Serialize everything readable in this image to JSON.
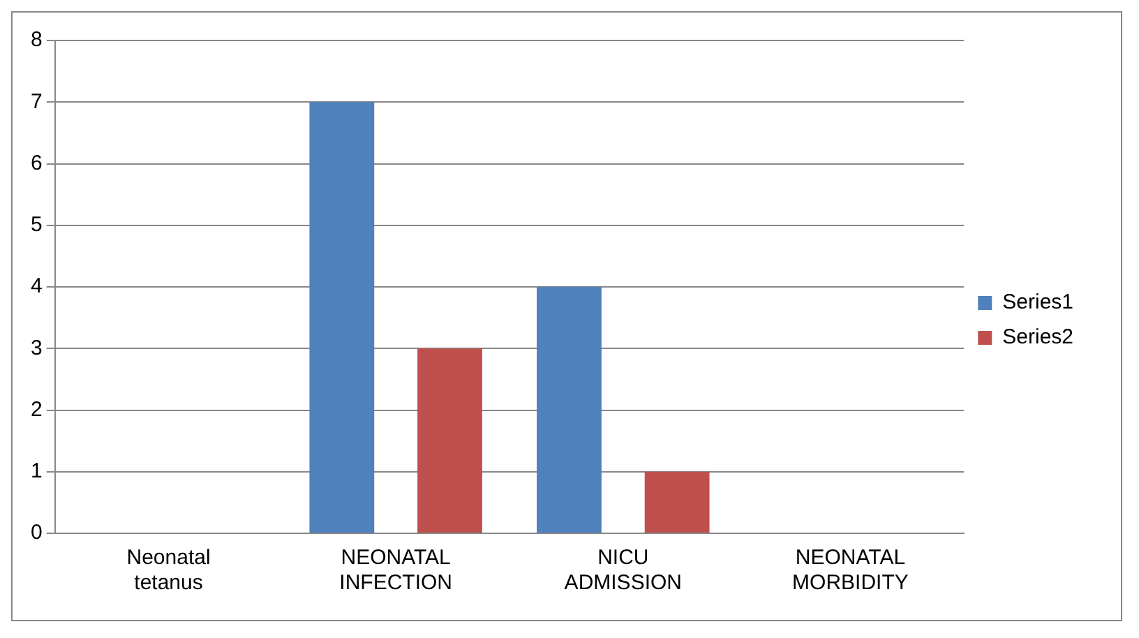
{
  "chart_data": {
    "type": "bar",
    "categories": [
      "Neonatal tetanus",
      "NEONATAL INFECTION",
      "NICU ADMISSION",
      "NEONATAL MORBIDITY"
    ],
    "series": [
      {
        "name": "Series1",
        "color": "#4f81bd",
        "values": [
          0,
          7,
          4,
          0
        ]
      },
      {
        "name": "Series2",
        "color": "#c0504d",
        "values": [
          0,
          3,
          1,
          0
        ]
      }
    ],
    "ylim": [
      0,
      8
    ],
    "yticks": [
      0,
      1,
      2,
      3,
      4,
      5,
      6,
      7,
      8
    ],
    "grid": "y",
    "legend": "right"
  }
}
